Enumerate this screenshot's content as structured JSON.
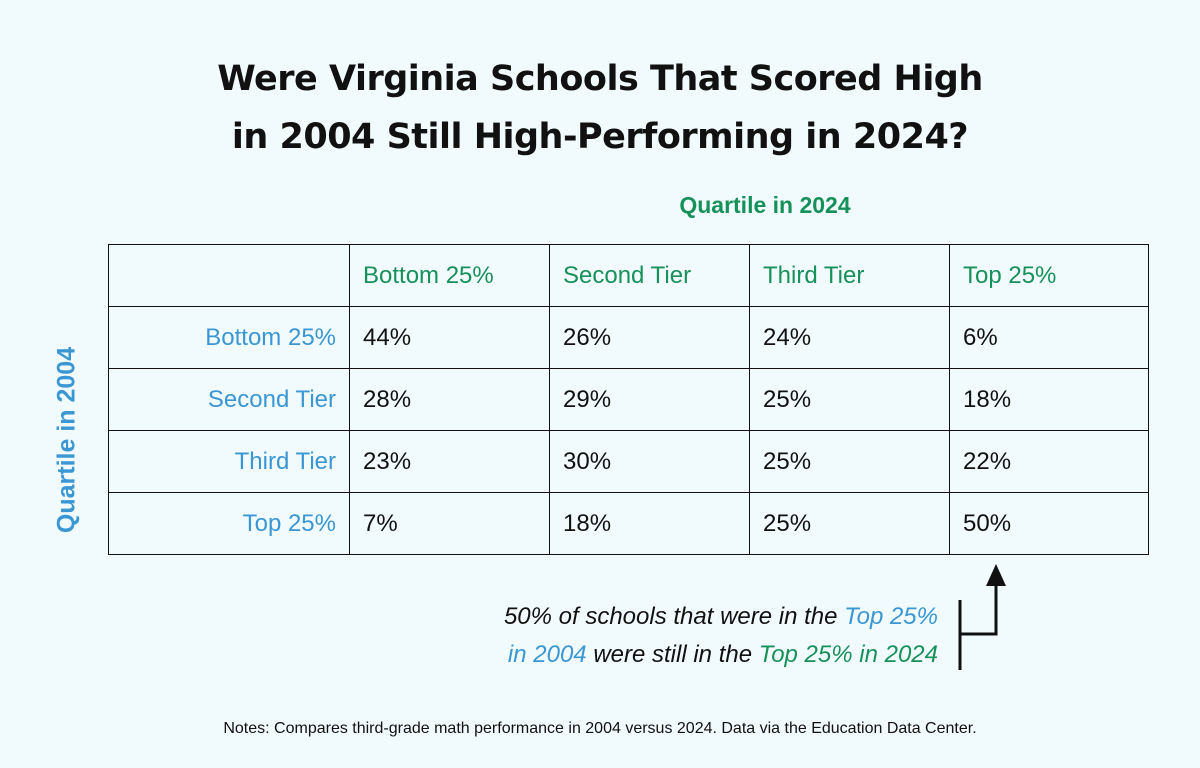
{
  "chart_data": {
    "type": "table",
    "title": "Were Virginia Schools That Scored High in 2004 Still High-Performing in 2024?",
    "title_lines": [
      "Were Virginia Schools That Scored High",
      "in 2004 Still High-Performing in 2024?"
    ],
    "column_axis_label": "Quartile in 2024",
    "row_axis_label": "Quartile in 2004",
    "columns": [
      "Bottom 25%",
      "Second Tier",
      "Third Tier",
      "Top 25%"
    ],
    "rows": [
      {
        "label": "Bottom 25%",
        "values": [
          "44%",
          "26%",
          "24%",
          "6%"
        ]
      },
      {
        "label": "Second Tier",
        "values": [
          "28%",
          "29%",
          "25%",
          "18%"
        ]
      },
      {
        "label": "Third Tier",
        "values": [
          "23%",
          "30%",
          "25%",
          "22%"
        ]
      },
      {
        "label": "Top 25%",
        "values": [
          "7%",
          "18%",
          "25%",
          "50%"
        ]
      }
    ],
    "annotation": {
      "line1_a": "50% of schools that were in the ",
      "line1_b": "Top 25%",
      "line2_a": "in 2004",
      "line2_b": " were still in the ",
      "line2_c": "Top 25% in 2024"
    },
    "footnote": "Notes: Compares third-grade math performance in 2004 versus 2024. Data via the Education Data Center."
  },
  "colors": {
    "background": "#f1fbfd",
    "column_header": "#17915a",
    "row_header": "#3a97d4",
    "text": "#111111"
  }
}
